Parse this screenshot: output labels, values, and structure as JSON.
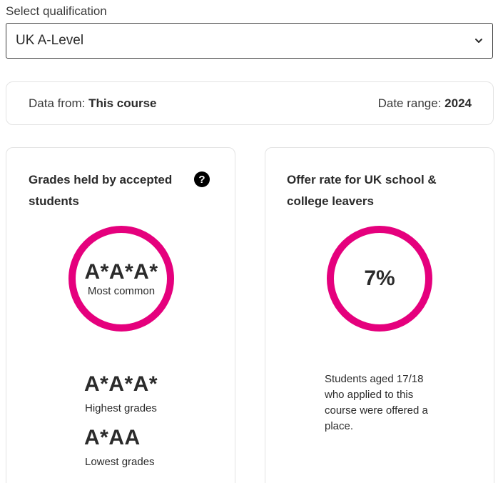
{
  "qualification": {
    "label": "Select qualification",
    "selected": "UK A-Level"
  },
  "info": {
    "data_from_label": "Data from:",
    "data_from_value": "This course",
    "date_range_label": "Date range:",
    "date_range_value": "2024"
  },
  "grades_card": {
    "title": "Grades held by accepted students",
    "help_icon": "question-circle-icon",
    "most_common_grade": "A*A*A*",
    "most_common_label": "Most common",
    "highest_grade": "A*A*A*",
    "highest_label": "Highest grades",
    "lowest_grade": "A*AA",
    "lowest_label": "Lowest grades"
  },
  "offer_card": {
    "title": "Offer rate for UK school & college leavers",
    "rate": "7%",
    "description": "Students aged 17/18 who applied to this course were offered a place."
  },
  "colors": {
    "accent": "#e5007d",
    "text": "#2b2b2b",
    "border": "#e3e3e3"
  }
}
